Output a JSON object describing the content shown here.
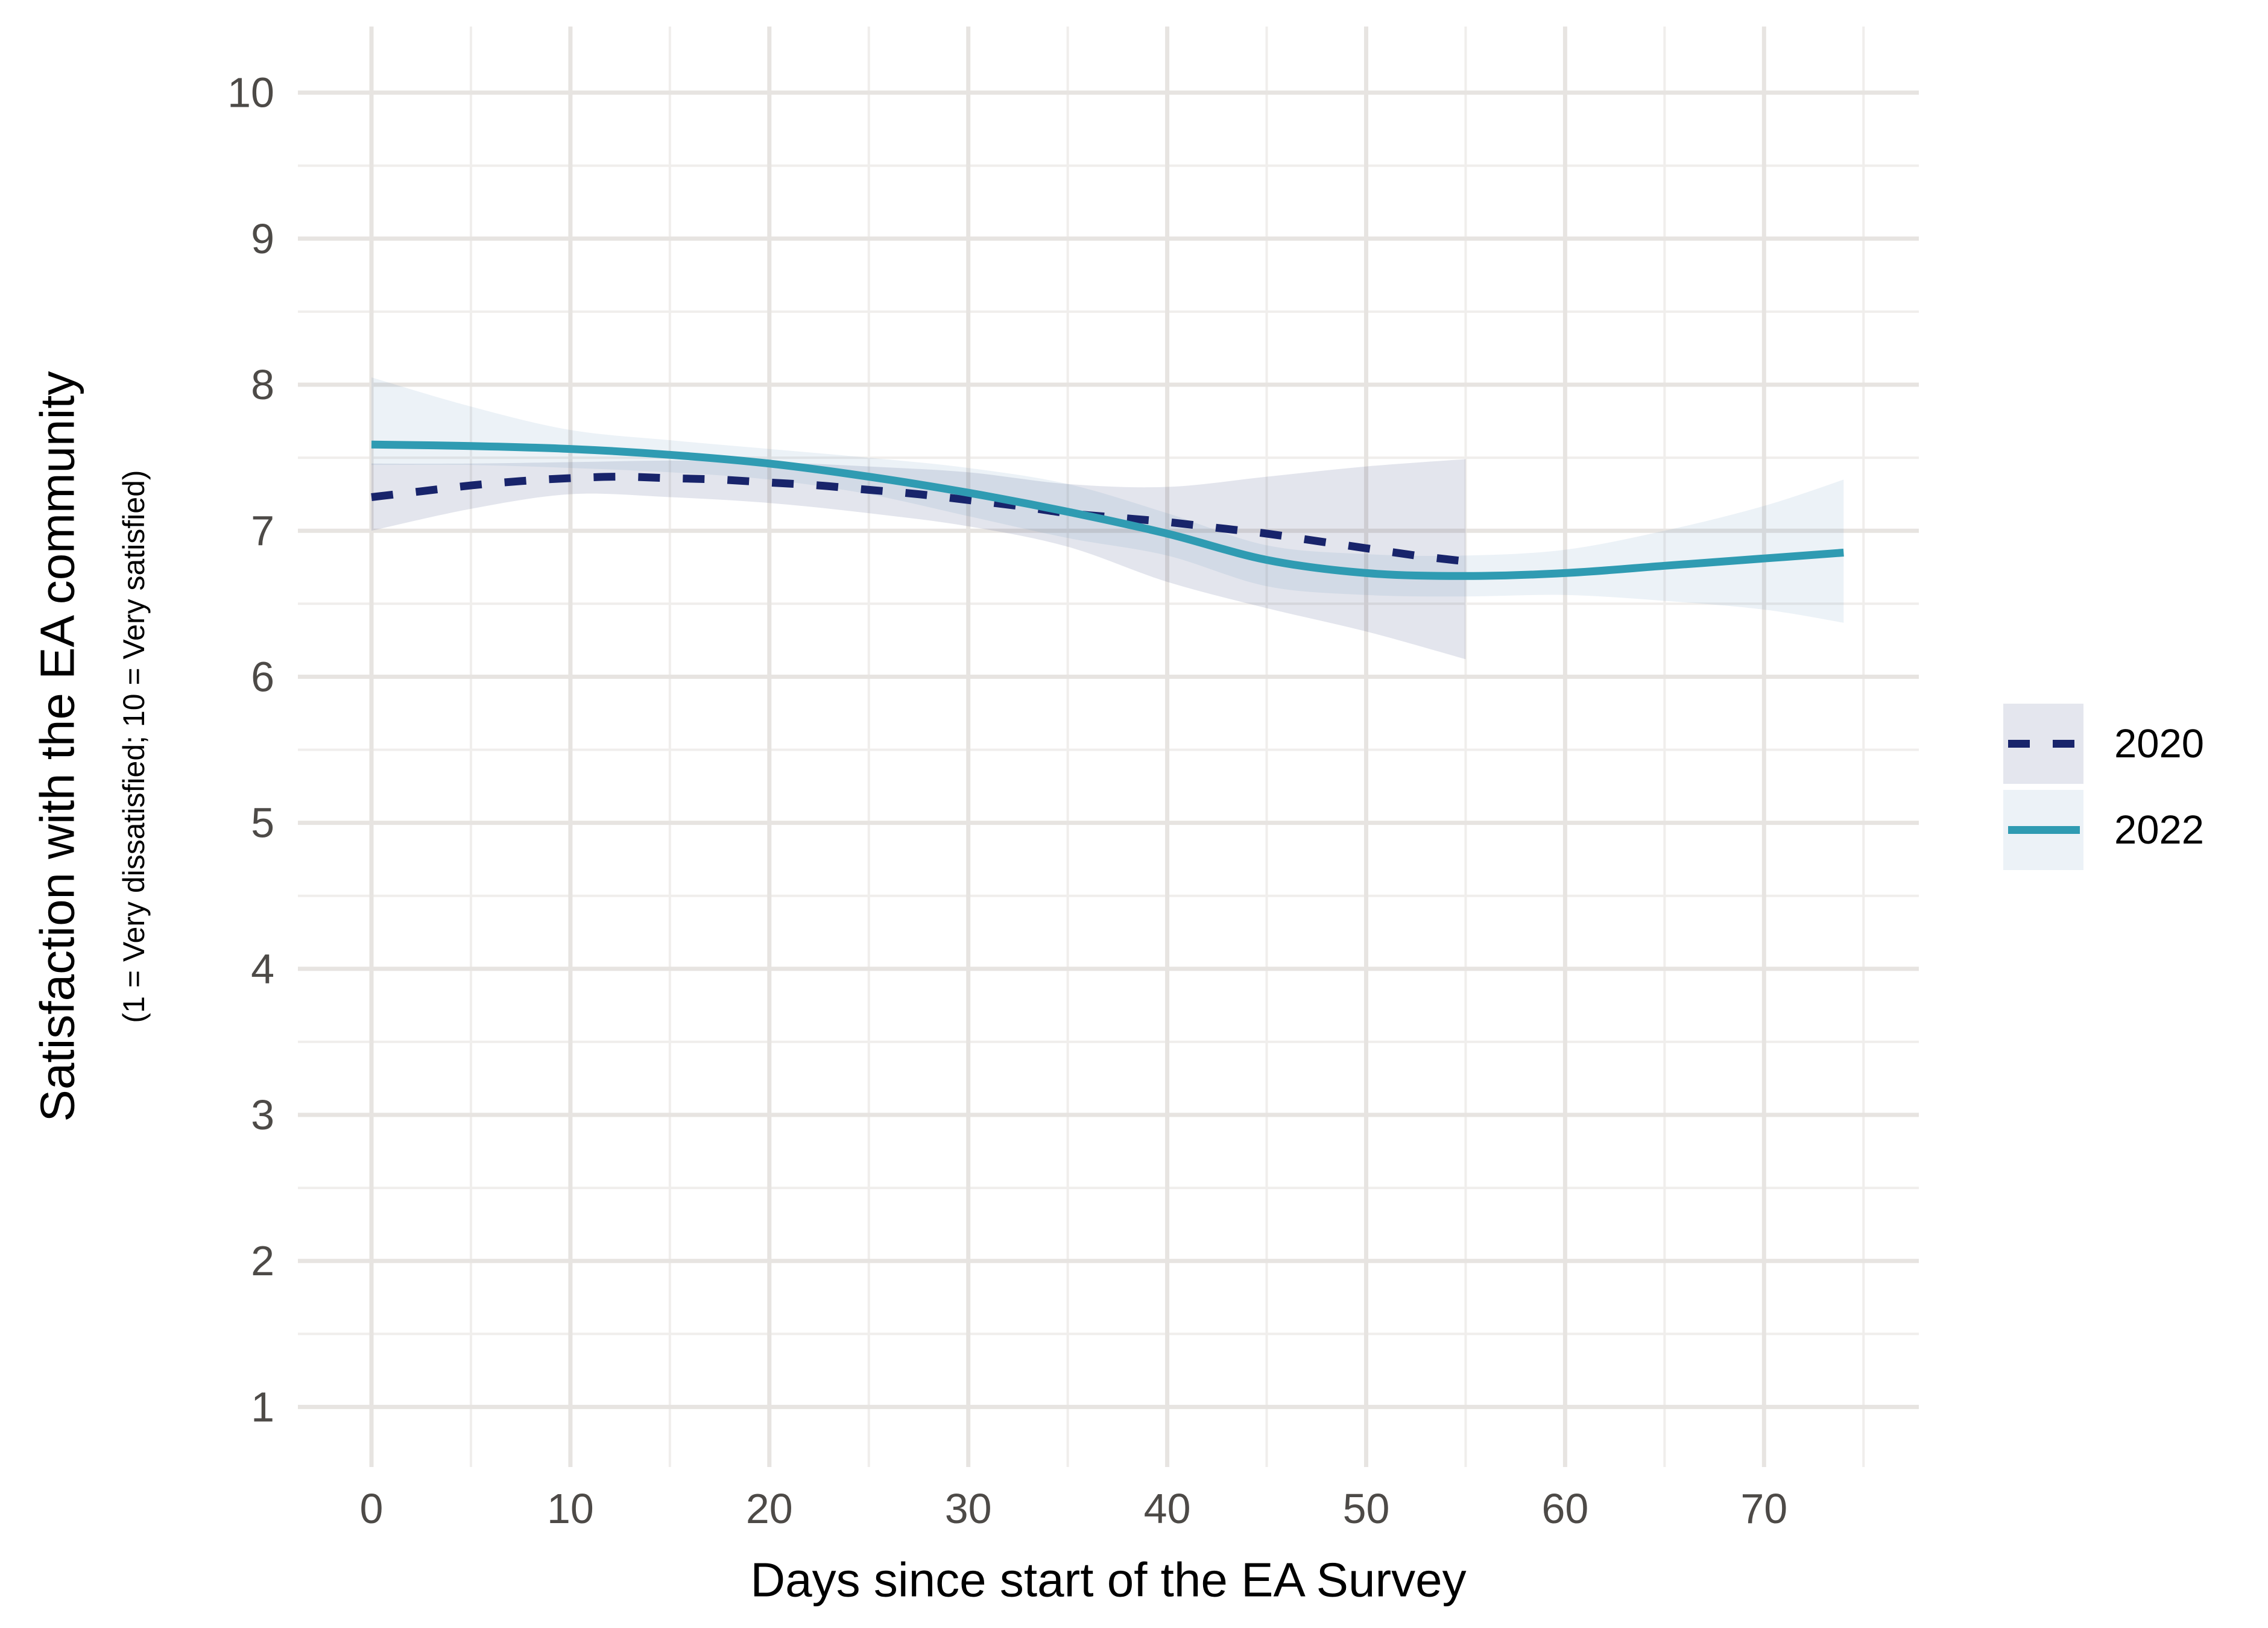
{
  "y_axis": {
    "title": "Satisfaction with the EA community",
    "subtitle": "(1 = Very dissatisfied; 10 = Very satisfied)",
    "tick_labels": [
      "1",
      "2",
      "3",
      "4",
      "5",
      "6",
      "7",
      "8",
      "9",
      "10"
    ]
  },
  "x_axis": {
    "title": "Days since start of the EA Survey",
    "tick_labels": [
      "0",
      "10",
      "20",
      "30",
      "40",
      "50",
      "60",
      "70"
    ]
  },
  "legend": {
    "items": [
      {
        "label": "2020",
        "color": "#18246b",
        "dashed": true,
        "key_bg": "#e4e6ee"
      },
      {
        "label": "2022",
        "color": "#2f9bb2",
        "dashed": false,
        "key_bg": "#ecf2f7"
      }
    ]
  },
  "colors": {
    "background": "#ffffff",
    "grid_major": "#e7e4e1",
    "grid_minor": "#f0eeec",
    "tick_text": "#4d4a47",
    "line_2020": "#18246b",
    "line_2022": "#2f9bb2",
    "ribbon_2020": "rgba(27,42,107,0.12)",
    "ribbon_2022": "rgba(70,130,180,0.10)"
  },
  "chart_data": {
    "type": "line",
    "title": "",
    "xlabel": "Days since start of the EA Survey",
    "ylabel": "Satisfaction with the EA community",
    "ylabel_note": "(1 = Very dissatisfied; 10 = Very satisfied)",
    "xlim": [
      0,
      74
    ],
    "ylim": [
      1,
      10
    ],
    "x_ticks": [
      0,
      10,
      20,
      30,
      40,
      50,
      60,
      70
    ],
    "x_minor_ticks": [
      5,
      15,
      25,
      35,
      45,
      55,
      65,
      75
    ],
    "y_ticks": [
      1,
      2,
      3,
      4,
      5,
      6,
      7,
      8,
      9,
      10
    ],
    "y_minor_ticks": [
      1.5,
      2.5,
      3.5,
      4.5,
      5.5,
      6.5,
      7.5,
      8.5,
      9.5
    ],
    "grid": "major and minor, no axis lines, no tick marks",
    "legend_position": "right",
    "series": [
      {
        "name": "2020",
        "style": "dashed",
        "color": "#18246b",
        "ci_fill": "rgba(27,42,107,0.12)",
        "points": [
          [
            0,
            7.23
          ],
          [
            2.5,
            7.27
          ],
          [
            5,
            7.31
          ],
          [
            7.5,
            7.34
          ],
          [
            10,
            7.36
          ],
          [
            12.5,
            7.37
          ],
          [
            15,
            7.36
          ],
          [
            17.5,
            7.35
          ],
          [
            20,
            7.33
          ],
          [
            22.5,
            7.31
          ],
          [
            25,
            7.28
          ],
          [
            27.5,
            7.25
          ],
          [
            30,
            7.21
          ],
          [
            32.5,
            7.17
          ],
          [
            35,
            7.12
          ],
          [
            37.5,
            7.09
          ],
          [
            40,
            7.06
          ],
          [
            42.5,
            7.02
          ],
          [
            45,
            6.98
          ],
          [
            47.5,
            6.93
          ],
          [
            50,
            6.88
          ],
          [
            52.5,
            6.83
          ],
          [
            55,
            6.79
          ]
        ],
        "ci_upper": [
          [
            0,
            7.46
          ],
          [
            5,
            7.46
          ],
          [
            10,
            7.47
          ],
          [
            15,
            7.48
          ],
          [
            20,
            7.47
          ],
          [
            25,
            7.44
          ],
          [
            30,
            7.4
          ],
          [
            35,
            7.32
          ],
          [
            40,
            7.3
          ],
          [
            45,
            7.37
          ],
          [
            50,
            7.44
          ],
          [
            55,
            7.49
          ]
        ],
        "ci_lower": [
          [
            0,
            7.0
          ],
          [
            5,
            7.15
          ],
          [
            10,
            7.25
          ],
          [
            15,
            7.23
          ],
          [
            20,
            7.19
          ],
          [
            25,
            7.12
          ],
          [
            30,
            7.03
          ],
          [
            35,
            6.89
          ],
          [
            40,
            6.65
          ],
          [
            45,
            6.47
          ],
          [
            50,
            6.31
          ],
          [
            55,
            6.12
          ]
        ]
      },
      {
        "name": "2022",
        "style": "solid",
        "color": "#2f9bb2",
        "ci_fill": "rgba(70,130,180,0.10)",
        "points": [
          [
            0,
            7.59
          ],
          [
            5,
            7.58
          ],
          [
            10,
            7.56
          ],
          [
            15,
            7.52
          ],
          [
            20,
            7.46
          ],
          [
            25,
            7.37
          ],
          [
            30,
            7.26
          ],
          [
            35,
            7.13
          ],
          [
            40,
            6.98
          ],
          [
            45,
            6.8
          ],
          [
            50,
            6.71
          ],
          [
            55,
            6.69
          ],
          [
            60,
            6.71
          ],
          [
            65,
            6.76
          ],
          [
            70,
            6.81
          ],
          [
            74,
            6.85
          ]
        ],
        "ci_upper": [
          [
            0,
            8.05
          ],
          [
            5,
            7.85
          ],
          [
            10,
            7.69
          ],
          [
            15,
            7.62
          ],
          [
            20,
            7.56
          ],
          [
            25,
            7.5
          ],
          [
            30,
            7.43
          ],
          [
            35,
            7.32
          ],
          [
            40,
            7.12
          ],
          [
            45,
            6.9
          ],
          [
            50,
            6.84
          ],
          [
            55,
            6.83
          ],
          [
            60,
            6.87
          ],
          [
            65,
            7.0
          ],
          [
            70,
            7.17
          ],
          [
            74,
            7.35
          ]
        ],
        "ci_lower": [
          [
            0,
            7.45
          ],
          [
            5,
            7.45
          ],
          [
            10,
            7.43
          ],
          [
            15,
            7.4
          ],
          [
            20,
            7.35
          ],
          [
            25,
            7.25
          ],
          [
            30,
            7.1
          ],
          [
            35,
            6.95
          ],
          [
            40,
            6.83
          ],
          [
            45,
            6.62
          ],
          [
            50,
            6.56
          ],
          [
            55,
            6.55
          ],
          [
            60,
            6.56
          ],
          [
            65,
            6.52
          ],
          [
            70,
            6.46
          ],
          [
            74,
            6.37
          ]
        ]
      }
    ]
  }
}
